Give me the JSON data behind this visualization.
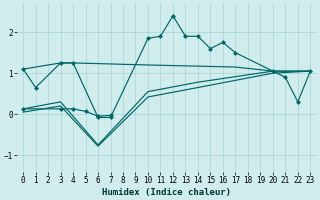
{
  "xlabel": "Humidex (Indice chaleur)",
  "bg_color": "#d0ecec",
  "grid_color": "#a8d4d4",
  "line_color": "#006666",
  "xlim": [
    -0.5,
    23.5
  ],
  "ylim": [
    -1.4,
    2.7
  ],
  "xticks": [
    0,
    1,
    2,
    3,
    4,
    5,
    6,
    7,
    8,
    9,
    10,
    11,
    12,
    13,
    14,
    15,
    16,
    17,
    18,
    19,
    20,
    21,
    22,
    23
  ],
  "yticks": [
    -1,
    0,
    1,
    2
  ],
  "s1_x": [
    0,
    1,
    3,
    4,
    6,
    7,
    10,
    11,
    12,
    13,
    14,
    15,
    16,
    17,
    20,
    21,
    22,
    23
  ],
  "s1_y": [
    1.1,
    0.65,
    1.25,
    1.25,
    -0.08,
    -0.08,
    1.85,
    1.9,
    2.4,
    1.9,
    1.9,
    1.6,
    1.75,
    1.5,
    1.05,
    0.9,
    0.3,
    1.05
  ],
  "s2_x": [
    0,
    3,
    4,
    5,
    6,
    7
  ],
  "s2_y": [
    0.13,
    0.13,
    0.13,
    0.07,
    -0.05,
    -0.03
  ],
  "s3_x": [
    0,
    3,
    6,
    10,
    14,
    20,
    23
  ],
  "s3_y": [
    0.13,
    0.3,
    -0.75,
    0.55,
    0.78,
    1.05,
    1.05
  ],
  "s4_x": [
    0,
    3,
    6,
    10,
    14,
    20,
    23
  ],
  "s4_y": [
    0.05,
    0.2,
    -0.78,
    0.42,
    0.65,
    1.0,
    1.05
  ],
  "s5_x": [
    0,
    3,
    4,
    10,
    17,
    20,
    23
  ],
  "s5_y": [
    1.1,
    1.25,
    1.25,
    1.2,
    1.15,
    1.05,
    1.05
  ]
}
